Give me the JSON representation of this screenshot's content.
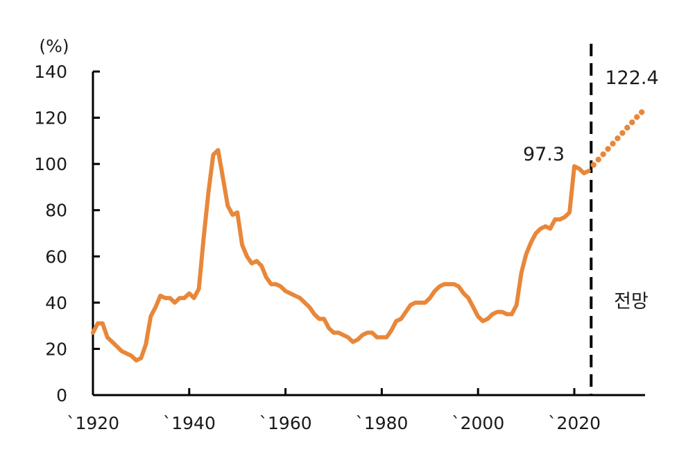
{
  "chart_data": {
    "type": "line",
    "unit_label": "(%)",
    "ylim": [
      0,
      140
    ],
    "yticks": [
      0,
      20,
      40,
      60,
      80,
      100,
      120,
      140
    ],
    "xlim": [
      1920,
      2034
    ],
    "xticks": [
      1920,
      1940,
      1960,
      1980,
      2000,
      2020
    ],
    "xtick_labels": [
      "`1920",
      "`1940",
      "`1960",
      "`1980",
      "`2000",
      "`2020"
    ],
    "series": [
      {
        "style": "solid",
        "color": "#E8873A",
        "x": [
          1920,
          1921,
          1922,
          1923,
          1924,
          1925,
          1926,
          1927,
          1928,
          1929,
          1930,
          1931,
          1932,
          1933,
          1934,
          1935,
          1936,
          1937,
          1938,
          1939,
          1940,
          1941,
          1942,
          1943,
          1944,
          1945,
          1946,
          1947,
          1948,
          1949,
          1950,
          1951,
          1952,
          1953,
          1954,
          1955,
          1956,
          1957,
          1958,
          1959,
          1960,
          1961,
          1962,
          1963,
          1964,
          1965,
          1966,
          1967,
          1968,
          1969,
          1970,
          1971,
          1972,
          1973,
          1974,
          1975,
          1976,
          1977,
          1978,
          1979,
          1980,
          1981,
          1982,
          1983,
          1984,
          1985,
          1986,
          1987,
          1988,
          1989,
          1990,
          1991,
          1992,
          1993,
          1994,
          1995,
          1996,
          1997,
          1998,
          1999,
          2000,
          2001,
          2002,
          2003,
          2004,
          2005,
          2006,
          2007,
          2008,
          2009,
          2010,
          2011,
          2012,
          2013,
          2014,
          2015,
          2016,
          2017,
          2018,
          2019,
          2020,
          2021,
          2022,
          2023
        ],
        "y": [
          27,
          31,
          31,
          25,
          23,
          21,
          19,
          18,
          17,
          15,
          16,
          22,
          34,
          38,
          43,
          42,
          42,
          40,
          42,
          42,
          44,
          42,
          46,
          68,
          88,
          104,
          106,
          94,
          82,
          78,
          79,
          65,
          60,
          57,
          58,
          56,
          51,
          48,
          48,
          47,
          45,
          44,
          43,
          42,
          40,
          38,
          35,
          33,
          33,
          29,
          27,
          27,
          26,
          25,
          23,
          24,
          26,
          27,
          27,
          25,
          25,
          25,
          28,
          32,
          33,
          36,
          39,
          40,
          40,
          40,
          42,
          45,
          47,
          48,
          48,
          48,
          47,
          44,
          42,
          38,
          34,
          32,
          33,
          35,
          36,
          36,
          35,
          35,
          39,
          53,
          61,
          66,
          70,
          72,
          73,
          72,
          76,
          76,
          77,
          79,
          99,
          98,
          96,
          97
        ]
      },
      {
        "style": "dotted",
        "color": "#E8873A",
        "x": [
          2023,
          2024,
          2025,
          2026,
          2027,
          2028,
          2029,
          2030,
          2031,
          2032,
          2033,
          2034
        ],
        "y": [
          97.3,
          99.6,
          101.9,
          104.2,
          106.5,
          108.8,
          111.1,
          113.4,
          115.7,
          118.0,
          120.3,
          122.4
        ]
      }
    ],
    "divider_x": 2023.5,
    "annotations": [
      {
        "text": "97.3"
      },
      {
        "text": "122.4"
      },
      {
        "text": "전망"
      }
    ]
  }
}
